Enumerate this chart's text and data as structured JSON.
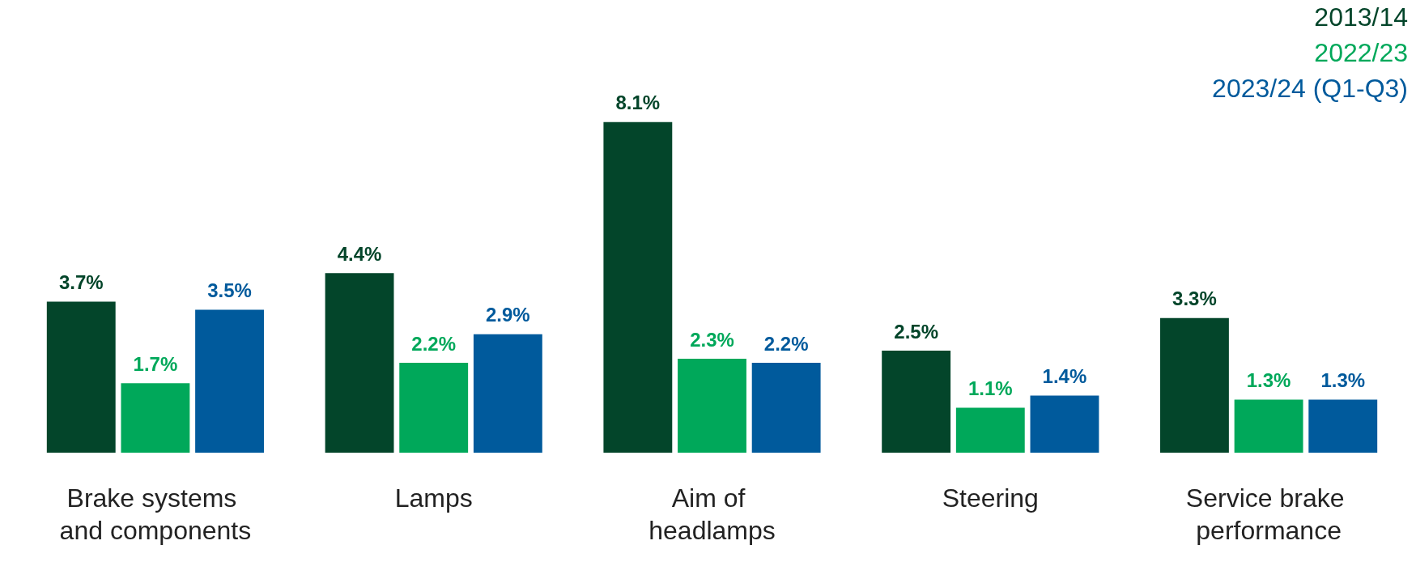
{
  "chart_data": {
    "type": "bar",
    "categories": [
      "Brake systems and components",
      "Lamps",
      "Aim of headlamps",
      "Steering",
      "Service brake performance"
    ],
    "series": [
      {
        "name": "2013/14",
        "color": "#03452a",
        "values": [
          3.7,
          4.4,
          8.1,
          2.5,
          3.3
        ],
        "value_labels": [
          "3.7%",
          "4.4%",
          "8.1%",
          "2.5%",
          "3.3%"
        ]
      },
      {
        "name": "2022/23",
        "color": "#00a85a",
        "values": [
          1.7,
          2.2,
          2.3,
          1.1,
          1.3
        ],
        "value_labels": [
          "1.7%",
          "2.2%",
          "2.3%",
          "1.1%",
          "1.3%"
        ]
      },
      {
        "name": "2023/24 (Q1-Q3)",
        "color": "#005a9c",
        "values": [
          3.5,
          2.9,
          2.2,
          1.4,
          1.3
        ],
        "value_labels": [
          "3.5%",
          "2.9%",
          "2.2%",
          "1.4%",
          "1.3%"
        ]
      }
    ],
    "legend": "top right",
    "grid": false
  }
}
